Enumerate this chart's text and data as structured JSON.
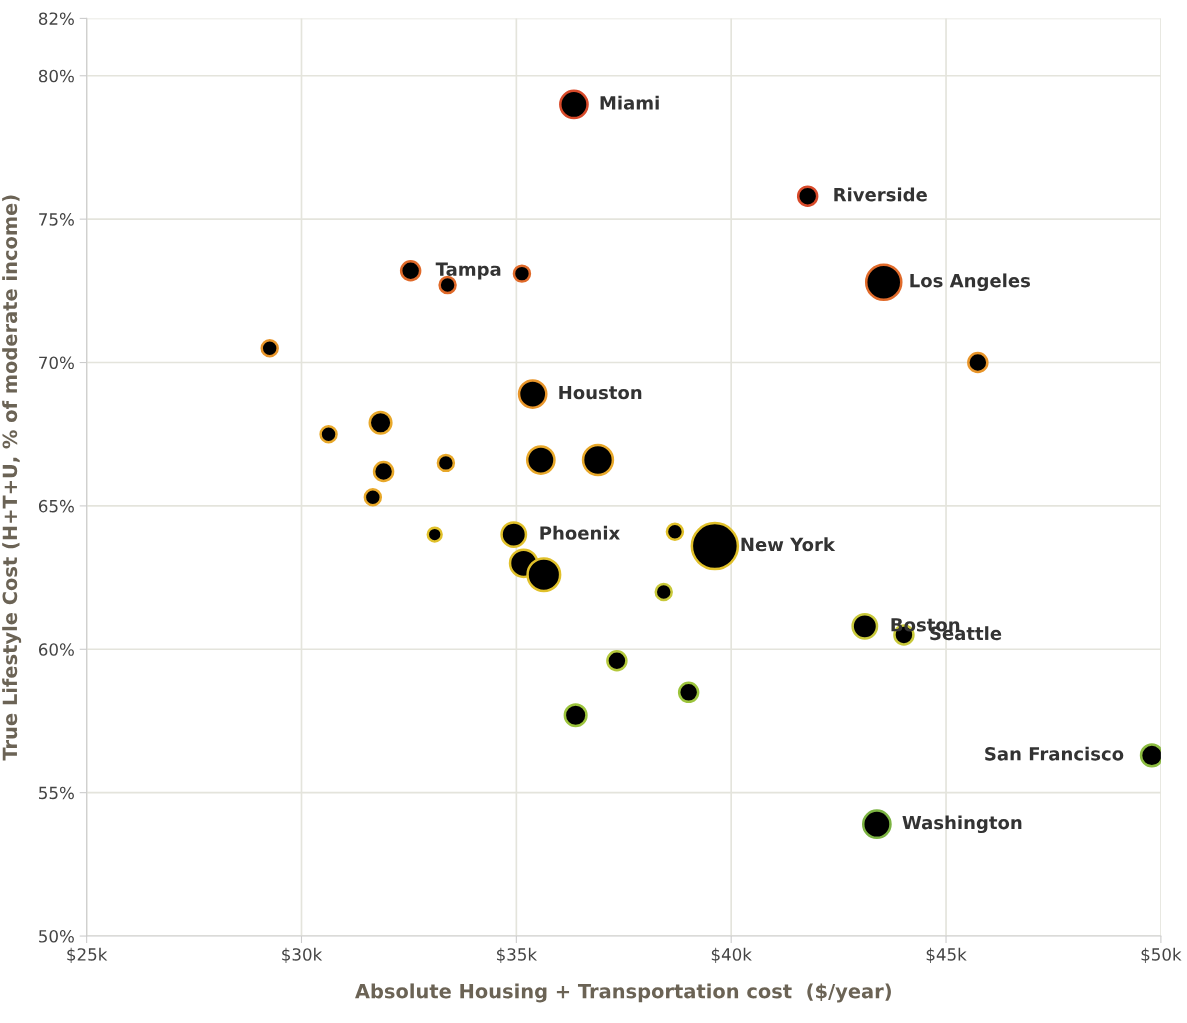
{
  "chart_data": {
    "type": "bubble",
    "xlabel": "Absolute Housing + Transportation cost  ($/year)",
    "ylabel": "True Lifestyle Cost (H+T+U, % of moderate income)",
    "xlim": [
      25,
      50
    ],
    "xticks": [
      {
        "value": 25,
        "label": "$25k"
      },
      {
        "value": 30,
        "label": "$30k"
      },
      {
        "value": 35,
        "label": "$35k"
      },
      {
        "value": 40,
        "label": "$40k"
      },
      {
        "value": 45,
        "label": "$45k"
      },
      {
        "value": 50,
        "label": "$50k"
      }
    ],
    "ylim": [
      50,
      82
    ],
    "yticks": [
      {
        "value": 50,
        "label": "50%"
      },
      {
        "value": 55,
        "label": "55%"
      },
      {
        "value": 60,
        "label": "60%"
      },
      {
        "value": 65,
        "label": "65%"
      },
      {
        "value": 70,
        "label": "70%"
      },
      {
        "value": 75,
        "label": "75%"
      },
      {
        "value": 80,
        "label": "80%"
      },
      {
        "value": 82,
        "label": "82%"
      }
    ],
    "grid": true,
    "series": [
      {
        "color": "#000000",
        "x": [
          36.34,
          41.78,
          43.55,
          32.54,
          35.13,
          33.4,
          29.26,
          45.74,
          35.38,
          31.84,
          30.63,
          31.91,
          33.36,
          35.57,
          36.9,
          31.66,
          33.1,
          34.94,
          38.69,
          39.62,
          35.17,
          35.64,
          38.43,
          43.11,
          44.02,
          37.34,
          39.01,
          36.38,
          49.79,
          43.39
        ],
        "values": [
          79.0,
          75.8,
          72.8,
          73.2,
          73.1,
          72.7,
          70.5,
          70.0,
          68.9,
          67.9,
          67.5,
          66.2,
          66.5,
          66.6,
          66.6,
          65.3,
          64.0,
          64.0,
          64.1,
          63.6,
          63.0,
          62.6,
          62.0,
          60.8,
          60.5,
          59.6,
          58.5,
          57.7,
          56.3,
          53.9
        ],
        "sizes": [
          0.35,
          0.17,
          0.58,
          0.17,
          0.12,
          0.12,
          0.12,
          0.17,
          0.35,
          0.22,
          0.12,
          0.17,
          0.12,
          0.35,
          0.42,
          0.12,
          0.09,
          0.28,
          0.12,
          1,
          0.35,
          0.5,
          0.12,
          0.28,
          0.17,
          0.17,
          0.17,
          0.22,
          0.22,
          0.35
        ],
        "colors": [
          "#d84a2a",
          "#d84a2a",
          "#e06a2a",
          "#e06a2a",
          "#e06a2a",
          "#e06a2a",
          "#e8952a",
          "#e8952a",
          "#e8952a",
          "#e8a82a",
          "#e8a82a",
          "#e8a82a",
          "#e8a82a",
          "#e8a82a",
          "#e8a82a",
          "#e8a82a",
          "#e0c02a",
          "#e0c02a",
          "#e0c02a",
          "#e0c02a",
          "#e0c02a",
          "#e0c02a",
          "#c8c83a",
          "#c8c83a",
          "#c8c83a",
          "#b4c83c",
          "#9cc43c",
          "#9cc43c",
          "#8cbc40",
          "#7cb342"
        ]
      }
    ],
    "annotations": [
      {
        "text": "Miami",
        "x": 36.34,
        "y": 79.0
      },
      {
        "text": "Riverside",
        "x": 41.78,
        "y": 75.8
      },
      {
        "text": "Los Angeles",
        "x": 43.55,
        "y": 72.8
      },
      {
        "text": "Tampa",
        "x": 32.54,
        "y": 73.2
      },
      {
        "text": "Houston",
        "x": 35.38,
        "y": 68.9
      },
      {
        "text": "Phoenix",
        "x": 34.94,
        "y": 64.0
      },
      {
        "text": "New York",
        "x": 39.62,
        "y": 63.6
      },
      {
        "text": "Boston",
        "x": 43.11,
        "y": 60.8
      },
      {
        "text": "Seattle",
        "x": 44.02,
        "y": 60.5
      },
      {
        "text": "San Francisco",
        "x": 49.79,
        "y": 56.3
      },
      {
        "text": "Washington",
        "x": 43.39,
        "y": 53.9
      }
    ]
  }
}
